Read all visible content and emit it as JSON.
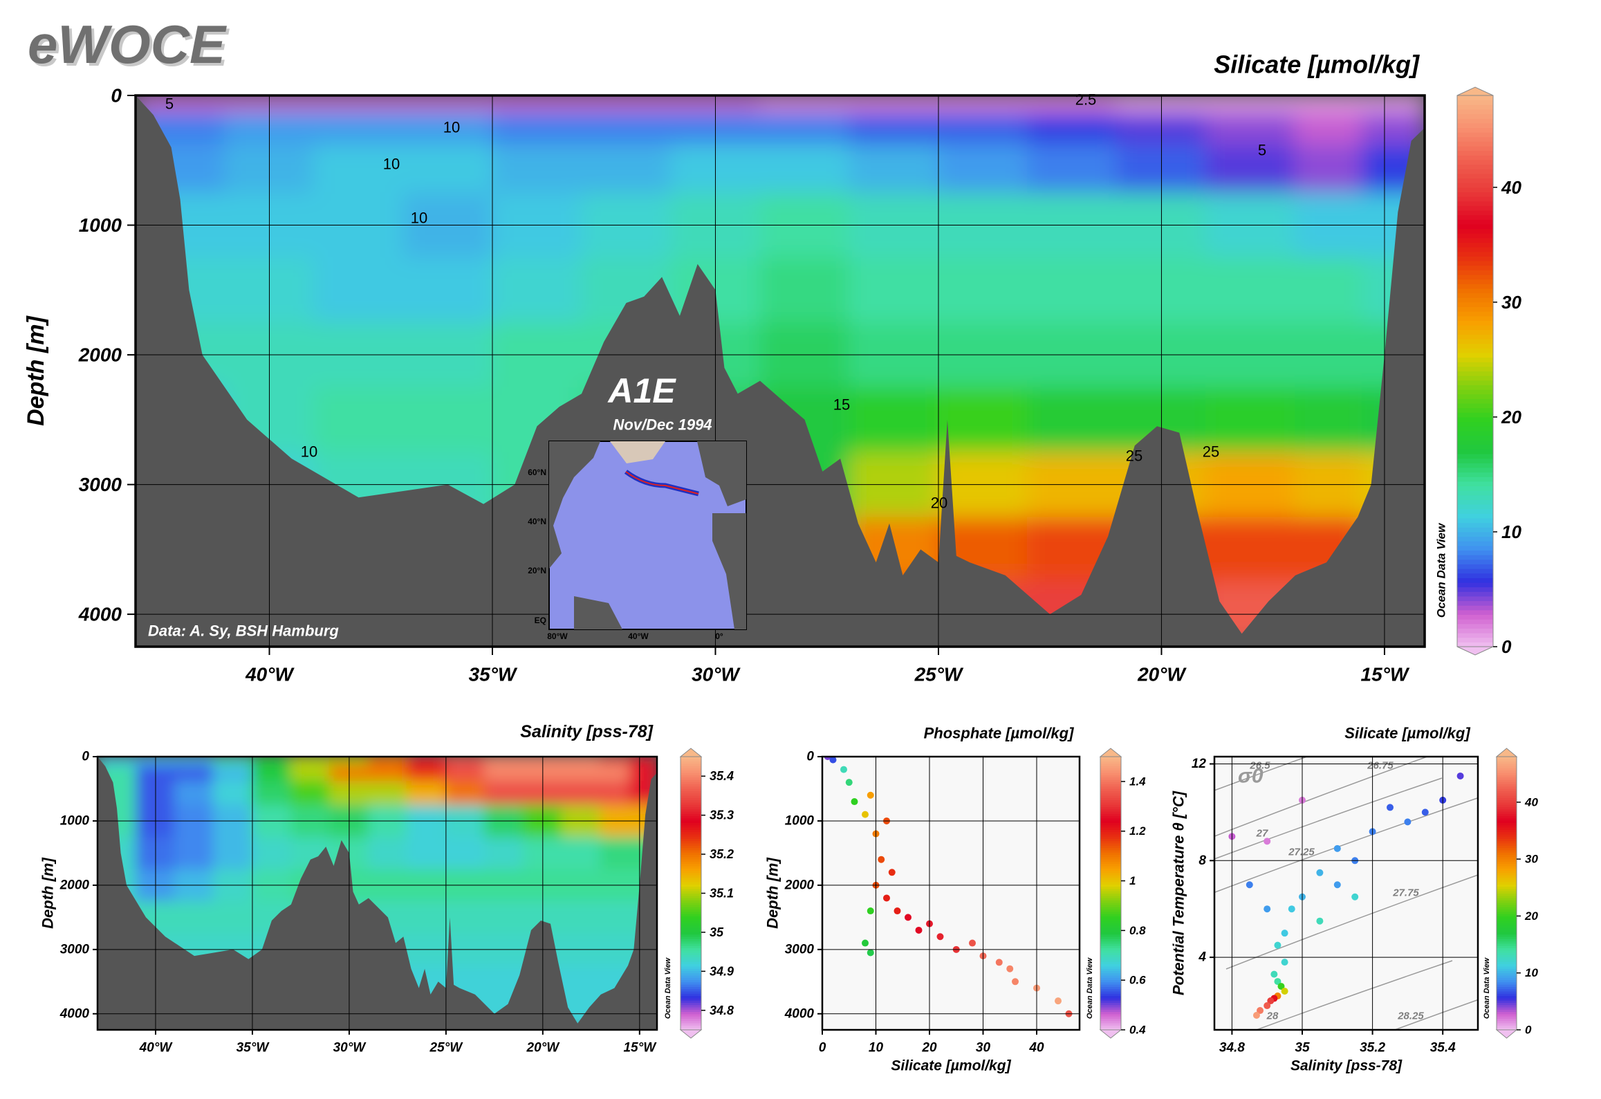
{
  "header": {
    "title": "eWOCE"
  },
  "chart_data": [
    {
      "type": "section",
      "title": "Silicate [µmol/kg]",
      "y_label": "Depth [m]",
      "xlim": [
        -43,
        -14.1
      ],
      "ylim": [
        4250,
        0
      ],
      "xticks": [
        {
          "value": -40,
          "label": "40°W"
        },
        {
          "value": -35,
          "label": "35°W"
        },
        {
          "value": -30,
          "label": "30°W"
        },
        {
          "value": -25,
          "label": "25°W"
        },
        {
          "value": -20,
          "label": "20°W"
        },
        {
          "value": -15,
          "label": "15°W"
        }
      ],
      "yticks": [
        0,
        1000,
        2000,
        3000,
        4000
      ],
      "grid": true,
      "x": [
        -42,
        -40,
        -38,
        -36,
        -34,
        -32,
        -30,
        -28,
        -26,
        -24,
        -22,
        -20,
        -18,
        -16,
        -15
      ],
      "depths": [
        0,
        250,
        500,
        1000,
        1500,
        2000,
        2500,
        3000,
        3500,
        4000,
        4250
      ],
      "field": [
        [
          3,
          3,
          3,
          3,
          3,
          3,
          3,
          2,
          2,
          2,
          2,
          1,
          1,
          1,
          1
        ],
        [
          8,
          9,
          9,
          9,
          8,
          8,
          8,
          8,
          7,
          7,
          6,
          5,
          4,
          3,
          4
        ],
        [
          9,
          10,
          11,
          11,
          10,
          10,
          11,
          11,
          10,
          9,
          8,
          7,
          5,
          4,
          6
        ],
        [
          11,
          11,
          11,
          10,
          11,
          12,
          13,
          14,
          13,
          13,
          13,
          13,
          12,
          11,
          11
        ],
        [
          12,
          12,
          11,
          11,
          12,
          13,
          14,
          15,
          14,
          14,
          14,
          14,
          14,
          14,
          13
        ],
        [
          13,
          13,
          13,
          13,
          14,
          14,
          15,
          16,
          15,
          15,
          15,
          15,
          15,
          15,
          15
        ],
        [
          11,
          13,
          14,
          14,
          14,
          15,
          16,
          17,
          19,
          20,
          18,
          18,
          19,
          18,
          17
        ],
        [
          10,
          12,
          13,
          13,
          14,
          15,
          16,
          17,
          24,
          26,
          27,
          27,
          28,
          27,
          26
        ],
        [
          10,
          11,
          12,
          12,
          13,
          14,
          16,
          18,
          30,
          32,
          33,
          33,
          33,
          33,
          30
        ],
        [
          10,
          11,
          12,
          12,
          13,
          14,
          16,
          18,
          35,
          40,
          40,
          40,
          42,
          42,
          40
        ],
        [
          10,
          11,
          12,
          12,
          13,
          14,
          16,
          18,
          35,
          40,
          40,
          40,
          42,
          42,
          40
        ]
      ],
      "bottom": {
        "x": [
          -43,
          -42.6,
          -42.2,
          -42,
          -41.8,
          -41.5,
          -40.5,
          -39.5,
          -38,
          -37,
          -36,
          -35.2,
          -34.5,
          -34,
          -33.5,
          -33,
          -32.5,
          -32,
          -31.6,
          -31.2,
          -30.8,
          -30.4,
          -30,
          -29.8,
          -29.5,
          -29,
          -28.5,
          -28,
          -27.6,
          -27.2,
          -26.8,
          -26.4,
          -26.1,
          -25.8,
          -25.4,
          -25,
          -24.8,
          -24.6,
          -24.3,
          -23.5,
          -22.5,
          -21.8,
          -21.2,
          -20.6,
          -20.1,
          -19.6,
          -19.2,
          -18.7,
          -18.2,
          -17.6,
          -17,
          -16.3,
          -15.6,
          -15.3,
          -15,
          -14.7,
          -14.4,
          -14.1
        ],
        "depth": [
          0,
          150,
          400,
          800,
          1500,
          2000,
          2500,
          2800,
          3100,
          3050,
          3000,
          3150,
          3000,
          2550,
          2400,
          2300,
          1900,
          1600,
          1550,
          1400,
          1700,
          1300,
          1500,
          2100,
          2300,
          2200,
          2350,
          2500,
          2900,
          2800,
          3300,
          3600,
          3300,
          3700,
          3500,
          3600,
          2500,
          3550,
          3600,
          3700,
          4000,
          3850,
          3400,
          2700,
          2550,
          2600,
          3200,
          3900,
          4150,
          3900,
          3700,
          3600,
          3250,
          3000,
          2000,
          900,
          350,
          250
        ]
      },
      "colorbar": {
        "lim": [
          0,
          48
        ],
        "ticks": [
          0,
          10,
          20,
          30,
          40
        ],
        "colors": [
          "#f0c0f0",
          "#d060d0",
          "#3030e0",
          "#4090f0",
          "#40d0e0",
          "#40e0a0",
          "#20c840",
          "#30d020",
          "#80d010",
          "#e0d000",
          "#f8a000",
          "#f07000",
          "#e83010",
          "#e00020",
          "#e83838",
          "#f06050",
          "#f89070",
          "#f8b888"
        ]
      },
      "contour_levels": [
        2.5,
        5,
        10,
        15,
        20,
        25
      ],
      "annotations": {
        "section": "A1E",
        "date": "Nov/Dec 1994",
        "source": "Data: A. Sy, BSH Hamburg"
      },
      "watermark": "Ocean Data View",
      "inset": {
        "yticks": [
          "60°N",
          "40°N",
          "20°N",
          "EQ"
        ],
        "xticks": [
          "80°W",
          "40°W",
          "0°"
        ]
      }
    },
    {
      "type": "section",
      "title": "Salinity [pss-78]",
      "y_label": "Depth [m]",
      "xlim": [
        -43,
        -14.1
      ],
      "ylim": [
        4250,
        0
      ],
      "xticks": [
        {
          "value": -40,
          "label": "40°W"
        },
        {
          "value": -35,
          "label": "35°W"
        },
        {
          "value": -30,
          "label": "30°W"
        },
        {
          "value": -25,
          "label": "25°W"
        },
        {
          "value": -20,
          "label": "20°W"
        },
        {
          "value": -15,
          "label": "15°W"
        }
      ],
      "yticks": [
        0,
        1000,
        2000,
        3000,
        4000
      ],
      "grid": true,
      "x": [
        -42,
        -40,
        -38,
        -36,
        -34,
        -32,
        -30,
        -28,
        -26,
        -24,
        -22,
        -20,
        -18,
        -16,
        -15
      ],
      "depths": [
        0,
        250,
        500,
        1000,
        1500,
        2000,
        2500,
        3000,
        3500,
        4000,
        4250
      ],
      "field": [
        [
          34.9,
          34.9,
          34.9,
          34.95,
          35.0,
          35.1,
          35.1,
          35.2,
          35.3,
          35.35,
          35.4,
          35.4,
          35.4,
          35.35,
          35.3
        ],
        [
          34.95,
          34.85,
          34.85,
          34.9,
          35.0,
          35.1,
          35.2,
          35.2,
          35.25,
          35.35,
          35.4,
          35.4,
          35.4,
          35.4,
          35.3
        ],
        [
          34.95,
          34.85,
          34.88,
          34.92,
          34.98,
          35.05,
          35.1,
          35.1,
          35.15,
          35.2,
          35.35,
          35.35,
          35.35,
          35.35,
          35.3
        ],
        [
          34.95,
          34.85,
          34.87,
          34.9,
          34.95,
          34.97,
          34.98,
          34.95,
          34.92,
          34.93,
          34.98,
          35.05,
          35.1,
          35.15,
          35.15
        ],
        [
          34.93,
          34.86,
          34.87,
          34.9,
          34.93,
          34.94,
          34.95,
          34.93,
          34.92,
          34.92,
          34.93,
          34.95,
          34.95,
          34.97,
          34.97
        ],
        [
          34.93,
          34.88,
          34.9,
          34.93,
          34.95,
          34.96,
          34.96,
          34.96,
          34.96,
          34.96,
          34.96,
          34.96,
          34.96,
          34.96,
          34.96
        ],
        [
          34.94,
          34.94,
          34.94,
          34.94,
          34.94,
          34.94,
          34.94,
          34.94,
          34.94,
          34.94,
          34.94,
          34.94,
          34.94,
          34.94,
          34.94
        ],
        [
          34.93,
          34.93,
          34.93,
          34.93,
          34.93,
          34.93,
          34.93,
          34.93,
          34.93,
          34.93,
          34.93,
          34.93,
          34.93,
          34.93,
          34.93
        ],
        [
          34.92,
          34.92,
          34.92,
          34.92,
          34.92,
          34.92,
          34.92,
          34.92,
          34.92,
          34.92,
          34.92,
          34.92,
          34.92,
          34.92,
          34.92
        ],
        [
          34.92,
          34.92,
          34.92,
          34.92,
          34.92,
          34.92,
          34.92,
          34.92,
          34.92,
          34.92,
          34.92,
          34.92,
          34.92,
          34.92,
          34.92
        ],
        [
          34.92,
          34.92,
          34.92,
          34.92,
          34.92,
          34.92,
          34.92,
          34.92,
          34.92,
          34.92,
          34.92,
          34.92,
          34.92,
          34.92,
          34.92
        ]
      ],
      "bottom": {
        "x": [
          -43,
          -42.6,
          -42.2,
          -42,
          -41.8,
          -41.5,
          -40.5,
          -39.5,
          -38,
          -37,
          -36,
          -35.2,
          -34.5,
          -34,
          -33.5,
          -33,
          -32.5,
          -32,
          -31.6,
          -31.2,
          -30.8,
          -30.4,
          -30,
          -29.8,
          -29.5,
          -29,
          -28.5,
          -28,
          -27.6,
          -27.2,
          -26.8,
          -26.4,
          -26.1,
          -25.8,
          -25.4,
          -25,
          -24.8,
          -24.6,
          -24.3,
          -23.5,
          -22.5,
          -21.8,
          -21.2,
          -20.6,
          -20.1,
          -19.6,
          -19.2,
          -18.7,
          -18.2,
          -17.6,
          -17,
          -16.3,
          -15.6,
          -15.3,
          -15,
          -14.7,
          -14.4,
          -14.1
        ],
        "depth": [
          0,
          150,
          400,
          800,
          1500,
          2000,
          2500,
          2800,
          3100,
          3050,
          3000,
          3150,
          3000,
          2550,
          2400,
          2300,
          1900,
          1600,
          1550,
          1400,
          1700,
          1300,
          1500,
          2100,
          2300,
          2200,
          2350,
          2500,
          2900,
          2800,
          3300,
          3600,
          3300,
          3700,
          3500,
          3600,
          2500,
          3550,
          3600,
          3700,
          4000,
          3850,
          3400,
          2700,
          2550,
          2600,
          3200,
          3900,
          4150,
          3900,
          3700,
          3600,
          3250,
          3000,
          2000,
          900,
          350,
          250
        ]
      },
      "colorbar": {
        "lim": [
          34.75,
          35.45
        ],
        "ticks": [
          34.8,
          34.9,
          35,
          35.1,
          35.2,
          35.3,
          35.4
        ],
        "colors": [
          "#f0c0f0",
          "#d060d0",
          "#3030e0",
          "#4090f0",
          "#40d0e0",
          "#40e0a0",
          "#20c840",
          "#30d020",
          "#80d010",
          "#e0d000",
          "#f8a000",
          "#f07000",
          "#e83010",
          "#e00020",
          "#e83838",
          "#f06050",
          "#f89070",
          "#f8b888"
        ]
      },
      "watermark": "Ocean Data View"
    },
    {
      "type": "scatter",
      "title": "Phosphate [µmol/kg]",
      "x_label": "Silicate [µmol/kg]",
      "y_label": "Depth [m]",
      "xlim": [
        0,
        48
      ],
      "ylim": [
        4250,
        0
      ],
      "xticks": [
        0,
        10,
        20,
        30,
        40
      ],
      "yticks": [
        0,
        1000,
        2000,
        3000,
        4000
      ],
      "grid": true,
      "x": [
        1,
        2,
        4,
        5,
        6,
        8,
        9,
        10,
        11,
        10,
        12,
        14,
        16,
        9,
        8,
        9,
        18,
        22,
        25,
        28,
        30,
        33,
        36,
        40,
        44,
        46,
        12,
        13,
        20,
        35
      ],
      "y": [
        0,
        50,
        200,
        400,
        700,
        900,
        600,
        1200,
        1600,
        2000,
        2200,
        2400,
        2500,
        2400,
        2900,
        3050,
        2700,
        2800,
        3000,
        2900,
        3100,
        3200,
        3500,
        3600,
        3800,
        4000,
        1000,
        1800,
        2600,
        3300
      ],
      "color_values": [
        0.5,
        0.55,
        0.7,
        0.75,
        0.85,
        1.0,
        1.05,
        1.1,
        1.15,
        1.15,
        1.2,
        1.2,
        1.25,
        0.85,
        0.8,
        0.78,
        1.25,
        1.28,
        1.3,
        1.35,
        1.38,
        1.4,
        1.42,
        1.45,
        1.47,
        1.35,
        1.15,
        1.18,
        1.27,
        1.42
      ],
      "colorbar": {
        "lim": [
          0.4,
          1.5
        ],
        "ticks": [
          0.4,
          0.6,
          0.8,
          1,
          1.2,
          1.4
        ],
        "colors": [
          "#f0c0f0",
          "#d060d0",
          "#3030e0",
          "#4090f0",
          "#40d0e0",
          "#40e0a0",
          "#20c840",
          "#30d020",
          "#80d010",
          "#e0d000",
          "#f8a000",
          "#f07000",
          "#e83010",
          "#e00020",
          "#e83838",
          "#f06050",
          "#f89070",
          "#f8b888"
        ]
      },
      "watermark": "Ocean Data View"
    },
    {
      "type": "scatter",
      "title": "Silicate [µmol/kg]",
      "x_label": "Salinity [pss-78]",
      "y_label": "Potential Temperature θ [°C]",
      "xlim": [
        34.75,
        35.5
      ],
      "ylim": [
        1,
        12.3
      ],
      "xticks": [
        34.8,
        35,
        35.2,
        35.4
      ],
      "yticks": [
        4,
        8,
        12
      ],
      "grid": true,
      "x": [
        35.45,
        35.4,
        35.35,
        35.3,
        35.2,
        35.1,
        35.05,
        35.0,
        34.97,
        35.1,
        35.15,
        34.95,
        34.93,
        34.95,
        34.92,
        34.93,
        34.94,
        34.95,
        34.93,
        34.92,
        34.91,
        34.9,
        34.88,
        34.87,
        34.8,
        34.9,
        35,
        35.25,
        34.85,
        34.9,
        35.15,
        35.05
      ],
      "y": [
        11.5,
        10.5,
        10,
        9.6,
        9.2,
        8.5,
        7.5,
        6.5,
        6,
        7,
        8,
        5,
        4.5,
        3.8,
        3.3,
        3,
        2.8,
        2.6,
        2.4,
        2.3,
        2.2,
        2.0,
        1.8,
        1.6,
        9,
        8.8,
        10.5,
        10.2,
        7,
        6,
        6.5,
        5.5
      ],
      "color_values": [
        5,
        6,
        7,
        8,
        8,
        9,
        10,
        10,
        11,
        9,
        8,
        11,
        12,
        12,
        13,
        14,
        20,
        25,
        30,
        36,
        40,
        42,
        44,
        46,
        3,
        2,
        2,
        7,
        8,
        9,
        12,
        13
      ],
      "density_label": "σ0",
      "density_levels": [
        26.5,
        26.75,
        27,
        27.25,
        27.75,
        28,
        28.25
      ],
      "colorbar": {
        "lim": [
          0,
          48
        ],
        "ticks": [
          0,
          10,
          20,
          30,
          40
        ],
        "colors": [
          "#f0c0f0",
          "#d060d0",
          "#3030e0",
          "#4090f0",
          "#40d0e0",
          "#40e0a0",
          "#20c840",
          "#30d020",
          "#80d010",
          "#e0d000",
          "#f8a000",
          "#f07000",
          "#e83010",
          "#e00020",
          "#e83838",
          "#f06050",
          "#f89070",
          "#f8b888"
        ]
      },
      "watermark": "Ocean Data View"
    }
  ]
}
